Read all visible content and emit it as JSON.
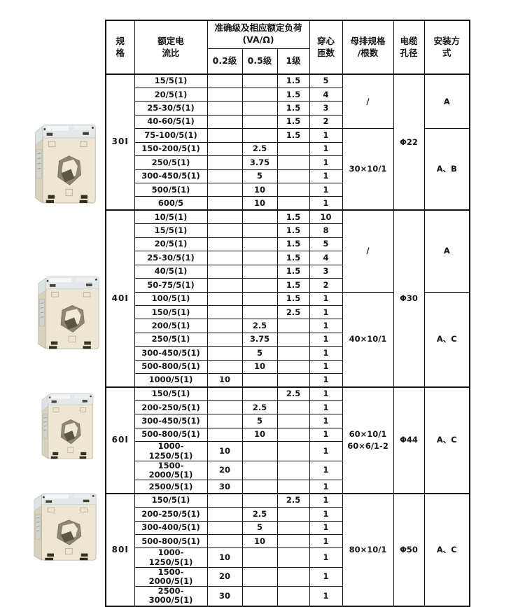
{
  "page": {
    "background": "#ffffff",
    "border_color": "#111111",
    "text_color": "#151515"
  },
  "table": {
    "header": {
      "spec": "规\n格",
      "ratio": "额定电\n流比",
      "accuracy": "准确级及相应额定负荷\n(VA/Ω)",
      "classes": [
        "0.2级",
        "0.5级",
        "1级"
      ],
      "turns": "穿心\n匝数",
      "busbar": "母排规格\n/根数",
      "cable": "电缆\n孔径",
      "install": "安装方\n式"
    },
    "groups": [
      {
        "spec": "30I",
        "rows": [
          [
            "15/5(1)",
            "",
            "",
            "1.5",
            "5"
          ],
          [
            "20/5(1)",
            "",
            "",
            "1.5",
            "4"
          ],
          [
            "25-30/5(1)",
            "",
            "",
            "1.5",
            "3"
          ],
          [
            "40-60/5(1)",
            "",
            "",
            "1.5",
            "2"
          ],
          [
            "75-100/5(1)",
            "",
            "",
            "1.5",
            "1"
          ],
          [
            "150-200/5(1)",
            "",
            "2.5",
            "",
            "1"
          ],
          [
            "250/5(1)",
            "",
            "3.75",
            "",
            "1"
          ],
          [
            "300-450/5(1)",
            "",
            "5",
            "",
            "1"
          ],
          [
            "500/5(1)",
            "",
            "10",
            "",
            "1"
          ],
          [
            "600/5",
            "",
            "10",
            "",
            "1"
          ]
        ],
        "busbar": [
          {
            "span": 4,
            "text": "/"
          },
          {
            "span": 6,
            "text": "30×10/1"
          }
        ],
        "cable": "Φ22",
        "install": [
          {
            "span": 4,
            "text": "A"
          },
          {
            "span": 6,
            "text": "A、B"
          }
        ]
      },
      {
        "spec": "40I",
        "rows": [
          [
            "10/5(1)",
            "",
            "",
            "1.5",
            "10"
          ],
          [
            "15/5(1)",
            "",
            "",
            "1.5",
            "8"
          ],
          [
            "20/5(1)",
            "",
            "",
            "1.5",
            "5"
          ],
          [
            "25-30/5(1)",
            "",
            "",
            "1.5",
            "4"
          ],
          [
            "40/5(1)",
            "",
            "",
            "1.5",
            "3"
          ],
          [
            "50-75/5(1)",
            "",
            "",
            "1.5",
            "2"
          ],
          [
            "100/5(1)",
            "",
            "",
            "1.5",
            "1"
          ],
          [
            "150/5(1)",
            "",
            "",
            "2.5",
            "1"
          ],
          [
            "200/5(1)",
            "",
            "2.5",
            "",
            "1"
          ],
          [
            "250/5(1)",
            "",
            "3.75",
            "",
            "1"
          ],
          [
            "300-450/5(1)",
            "",
            "5",
            "",
            "1"
          ],
          [
            "500-800/5(1)",
            "",
            "10",
            "",
            "1"
          ],
          [
            "1000/5(1)",
            "10",
            "",
            "",
            "1"
          ]
        ],
        "busbar": [
          {
            "span": 6,
            "text": "/"
          },
          {
            "span": 7,
            "text": "40×10/1"
          }
        ],
        "cable": "Φ30",
        "install": [
          {
            "span": 6,
            "text": "A"
          },
          {
            "span": 7,
            "text": "A、C"
          }
        ]
      },
      {
        "spec": "60I",
        "rows": [
          [
            "150/5(1)",
            "",
            "",
            "2.5",
            "1"
          ],
          [
            "200-250/5(1)",
            "",
            "2.5",
            "",
            "1"
          ],
          [
            "300-450/5(1)",
            "",
            "5",
            "",
            "1"
          ],
          [
            "500-800/5(1)",
            "",
            "10",
            "",
            "1"
          ],
          [
            "1000-1250/5(1)",
            "10",
            "",
            "",
            "1"
          ],
          [
            "1500-2000/5(1)",
            "20",
            "",
            "",
            "1"
          ],
          [
            "2500/5(1)",
            "30",
            "",
            "",
            "1"
          ]
        ],
        "busbar": [
          {
            "span": 7,
            "text": "60×10/1\n60×6/1-2"
          }
        ],
        "cable": "Φ44",
        "install": [
          {
            "span": 7,
            "text": "A、C"
          }
        ]
      },
      {
        "spec": "80I",
        "rows": [
          [
            "150/5(1)",
            "",
            "",
            "2.5",
            "1"
          ],
          [
            "200-250/5(1)",
            "",
            "2.5",
            "",
            "1"
          ],
          [
            "300-400/5(1)",
            "",
            "5",
            "",
            "1"
          ],
          [
            "500-800/5(1)",
            "",
            "10",
            "",
            "1"
          ],
          [
            "1000-1250/5(1)",
            "10",
            "",
            "",
            "1"
          ],
          [
            "1500-2000/5(1)",
            "20",
            "",
            "",
            "1"
          ],
          [
            "2500-3000/5(1)",
            "30",
            "",
            "",
            "1"
          ]
        ],
        "busbar": [
          {
            "span": 7,
            "text": "80×10/1"
          }
        ],
        "cable": "Φ50",
        "install": [
          {
            "span": 7,
            "text": "A、C"
          }
        ]
      }
    ]
  },
  "products": {
    "icons": [
      "current-transformer-photo-30i",
      "current-transformer-photo-40i",
      "current-transformer-photo-60i",
      "current-transformer-photo-80i"
    ],
    "colors": {
      "body": "#ece6d2",
      "body_shade": "#d8d2bc",
      "cap": "#e4e8ea",
      "hole_dark": "#5a563f",
      "hole_mid": "#a8a28a",
      "hole_light": "#efe9d6"
    }
  }
}
